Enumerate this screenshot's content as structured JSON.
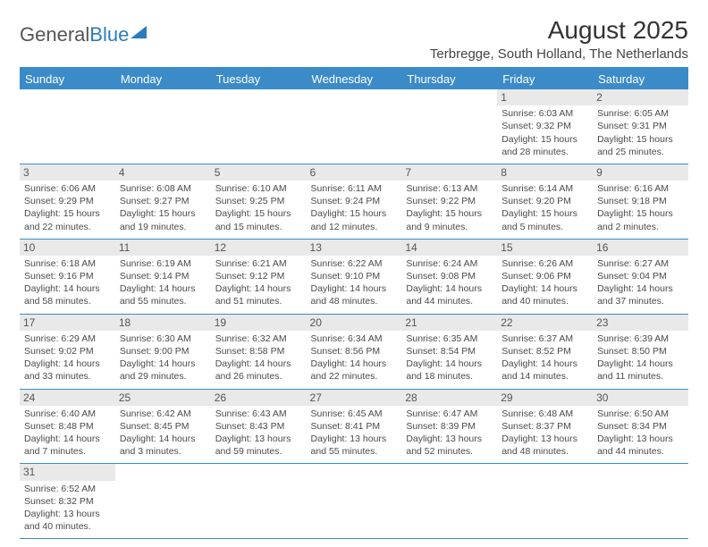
{
  "logo": {
    "part1": "General",
    "part2": "Blue"
  },
  "header": {
    "title": "August 2025",
    "location": "Terbregge, South Holland, The Netherlands"
  },
  "weekdays": [
    "Sunday",
    "Monday",
    "Tuesday",
    "Wednesday",
    "Thursday",
    "Friday",
    "Saturday"
  ],
  "colors": {
    "header_bg": "#3b8bc9",
    "header_text": "#ffffff",
    "daynum_bg": "#e9e9e9",
    "border": "#3b8bc9",
    "text": "#4a4a4a",
    "logo_blue": "#2b7bbf",
    "logo_gray": "#555555"
  },
  "typography": {
    "title_fontsize": 28,
    "location_fontsize": 15,
    "weekday_fontsize": 13,
    "cell_fontsize": 10.5,
    "daynum_fontsize": 12
  },
  "weeks": [
    [
      null,
      null,
      null,
      null,
      null,
      {
        "n": "1",
        "sr": "Sunrise: 6:03 AM",
        "ss": "Sunset: 9:32 PM",
        "d1": "Daylight: 15 hours",
        "d2": "and 28 minutes."
      },
      {
        "n": "2",
        "sr": "Sunrise: 6:05 AM",
        "ss": "Sunset: 9:31 PM",
        "d1": "Daylight: 15 hours",
        "d2": "and 25 minutes."
      }
    ],
    [
      {
        "n": "3",
        "sr": "Sunrise: 6:06 AM",
        "ss": "Sunset: 9:29 PM",
        "d1": "Daylight: 15 hours",
        "d2": "and 22 minutes."
      },
      {
        "n": "4",
        "sr": "Sunrise: 6:08 AM",
        "ss": "Sunset: 9:27 PM",
        "d1": "Daylight: 15 hours",
        "d2": "and 19 minutes."
      },
      {
        "n": "5",
        "sr": "Sunrise: 6:10 AM",
        "ss": "Sunset: 9:25 PM",
        "d1": "Daylight: 15 hours",
        "d2": "and 15 minutes."
      },
      {
        "n": "6",
        "sr": "Sunrise: 6:11 AM",
        "ss": "Sunset: 9:24 PM",
        "d1": "Daylight: 15 hours",
        "d2": "and 12 minutes."
      },
      {
        "n": "7",
        "sr": "Sunrise: 6:13 AM",
        "ss": "Sunset: 9:22 PM",
        "d1": "Daylight: 15 hours",
        "d2": "and 9 minutes."
      },
      {
        "n": "8",
        "sr": "Sunrise: 6:14 AM",
        "ss": "Sunset: 9:20 PM",
        "d1": "Daylight: 15 hours",
        "d2": "and 5 minutes."
      },
      {
        "n": "9",
        "sr": "Sunrise: 6:16 AM",
        "ss": "Sunset: 9:18 PM",
        "d1": "Daylight: 15 hours",
        "d2": "and 2 minutes."
      }
    ],
    [
      {
        "n": "10",
        "sr": "Sunrise: 6:18 AM",
        "ss": "Sunset: 9:16 PM",
        "d1": "Daylight: 14 hours",
        "d2": "and 58 minutes."
      },
      {
        "n": "11",
        "sr": "Sunrise: 6:19 AM",
        "ss": "Sunset: 9:14 PM",
        "d1": "Daylight: 14 hours",
        "d2": "and 55 minutes."
      },
      {
        "n": "12",
        "sr": "Sunrise: 6:21 AM",
        "ss": "Sunset: 9:12 PM",
        "d1": "Daylight: 14 hours",
        "d2": "and 51 minutes."
      },
      {
        "n": "13",
        "sr": "Sunrise: 6:22 AM",
        "ss": "Sunset: 9:10 PM",
        "d1": "Daylight: 14 hours",
        "d2": "and 48 minutes."
      },
      {
        "n": "14",
        "sr": "Sunrise: 6:24 AM",
        "ss": "Sunset: 9:08 PM",
        "d1": "Daylight: 14 hours",
        "d2": "and 44 minutes."
      },
      {
        "n": "15",
        "sr": "Sunrise: 6:26 AM",
        "ss": "Sunset: 9:06 PM",
        "d1": "Daylight: 14 hours",
        "d2": "and 40 minutes."
      },
      {
        "n": "16",
        "sr": "Sunrise: 6:27 AM",
        "ss": "Sunset: 9:04 PM",
        "d1": "Daylight: 14 hours",
        "d2": "and 37 minutes."
      }
    ],
    [
      {
        "n": "17",
        "sr": "Sunrise: 6:29 AM",
        "ss": "Sunset: 9:02 PM",
        "d1": "Daylight: 14 hours",
        "d2": "and 33 minutes."
      },
      {
        "n": "18",
        "sr": "Sunrise: 6:30 AM",
        "ss": "Sunset: 9:00 PM",
        "d1": "Daylight: 14 hours",
        "d2": "and 29 minutes."
      },
      {
        "n": "19",
        "sr": "Sunrise: 6:32 AM",
        "ss": "Sunset: 8:58 PM",
        "d1": "Daylight: 14 hours",
        "d2": "and 26 minutes."
      },
      {
        "n": "20",
        "sr": "Sunrise: 6:34 AM",
        "ss": "Sunset: 8:56 PM",
        "d1": "Daylight: 14 hours",
        "d2": "and 22 minutes."
      },
      {
        "n": "21",
        "sr": "Sunrise: 6:35 AM",
        "ss": "Sunset: 8:54 PM",
        "d1": "Daylight: 14 hours",
        "d2": "and 18 minutes."
      },
      {
        "n": "22",
        "sr": "Sunrise: 6:37 AM",
        "ss": "Sunset: 8:52 PM",
        "d1": "Daylight: 14 hours",
        "d2": "and 14 minutes."
      },
      {
        "n": "23",
        "sr": "Sunrise: 6:39 AM",
        "ss": "Sunset: 8:50 PM",
        "d1": "Daylight: 14 hours",
        "d2": "and 11 minutes."
      }
    ],
    [
      {
        "n": "24",
        "sr": "Sunrise: 6:40 AM",
        "ss": "Sunset: 8:48 PM",
        "d1": "Daylight: 14 hours",
        "d2": "and 7 minutes."
      },
      {
        "n": "25",
        "sr": "Sunrise: 6:42 AM",
        "ss": "Sunset: 8:45 PM",
        "d1": "Daylight: 14 hours",
        "d2": "and 3 minutes."
      },
      {
        "n": "26",
        "sr": "Sunrise: 6:43 AM",
        "ss": "Sunset: 8:43 PM",
        "d1": "Daylight: 13 hours",
        "d2": "and 59 minutes."
      },
      {
        "n": "27",
        "sr": "Sunrise: 6:45 AM",
        "ss": "Sunset: 8:41 PM",
        "d1": "Daylight: 13 hours",
        "d2": "and 55 minutes."
      },
      {
        "n": "28",
        "sr": "Sunrise: 6:47 AM",
        "ss": "Sunset: 8:39 PM",
        "d1": "Daylight: 13 hours",
        "d2": "and 52 minutes."
      },
      {
        "n": "29",
        "sr": "Sunrise: 6:48 AM",
        "ss": "Sunset: 8:37 PM",
        "d1": "Daylight: 13 hours",
        "d2": "and 48 minutes."
      },
      {
        "n": "30",
        "sr": "Sunrise: 6:50 AM",
        "ss": "Sunset: 8:34 PM",
        "d1": "Daylight: 13 hours",
        "d2": "and 44 minutes."
      }
    ],
    [
      {
        "n": "31",
        "sr": "Sunrise: 6:52 AM",
        "ss": "Sunset: 8:32 PM",
        "d1": "Daylight: 13 hours",
        "d2": "and 40 minutes."
      },
      null,
      null,
      null,
      null,
      null,
      null
    ]
  ]
}
